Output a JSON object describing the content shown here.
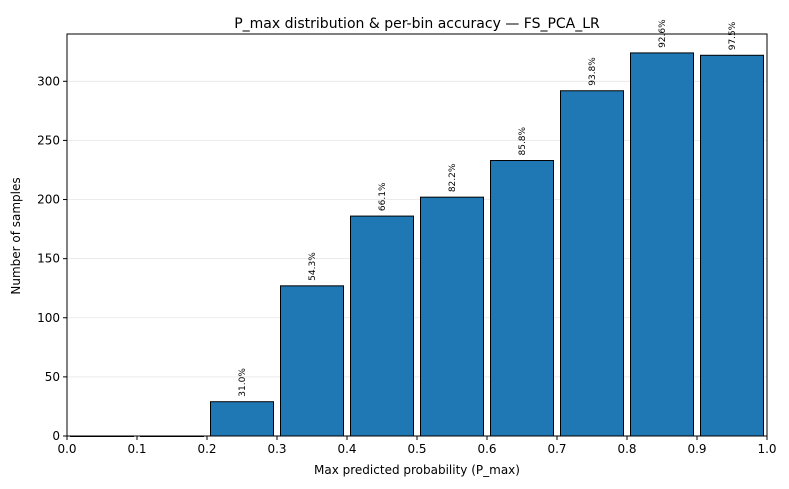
{
  "chart_data": {
    "type": "bar",
    "title": "P_max distribution & per-bin accuracy — FS_PCA_LR",
    "xlabel": "Max predicted probability (P_max)",
    "ylabel": "Number of samples",
    "xlim": [
      0.0,
      1.0
    ],
    "ylim": [
      0,
      340
    ],
    "xticks": [
      "0.0",
      "0.1",
      "0.2",
      "0.3",
      "0.4",
      "0.5",
      "0.6",
      "0.7",
      "0.8",
      "0.9",
      "1.0"
    ],
    "yticks": [
      "0",
      "50",
      "100",
      "150",
      "200",
      "250",
      "300"
    ],
    "grid": "y",
    "bins": [
      {
        "x0": 0.0,
        "x1": 0.1,
        "count": 0,
        "accuracy_label": ""
      },
      {
        "x0": 0.1,
        "x1": 0.2,
        "count": 0,
        "accuracy_label": ""
      },
      {
        "x0": 0.2,
        "x1": 0.3,
        "count": 29,
        "accuracy_label": "31.0%"
      },
      {
        "x0": 0.3,
        "x1": 0.4,
        "count": 127,
        "accuracy_label": "54.3%"
      },
      {
        "x0": 0.4,
        "x1": 0.5,
        "count": 186,
        "accuracy_label": "66.1%"
      },
      {
        "x0": 0.5,
        "x1": 0.6,
        "count": 202,
        "accuracy_label": "82.2%"
      },
      {
        "x0": 0.6,
        "x1": 0.7,
        "count": 233,
        "accuracy_label": "85.8%"
      },
      {
        "x0": 0.7,
        "x1": 0.8,
        "count": 292,
        "accuracy_label": "93.8%"
      },
      {
        "x0": 0.8,
        "x1": 0.9,
        "count": 324,
        "accuracy_label": "92.6%"
      },
      {
        "x0": 0.9,
        "x1": 1.0,
        "count": 322,
        "accuracy_label": "97.5%"
      }
    ],
    "bar_color": "#1f77b4"
  }
}
